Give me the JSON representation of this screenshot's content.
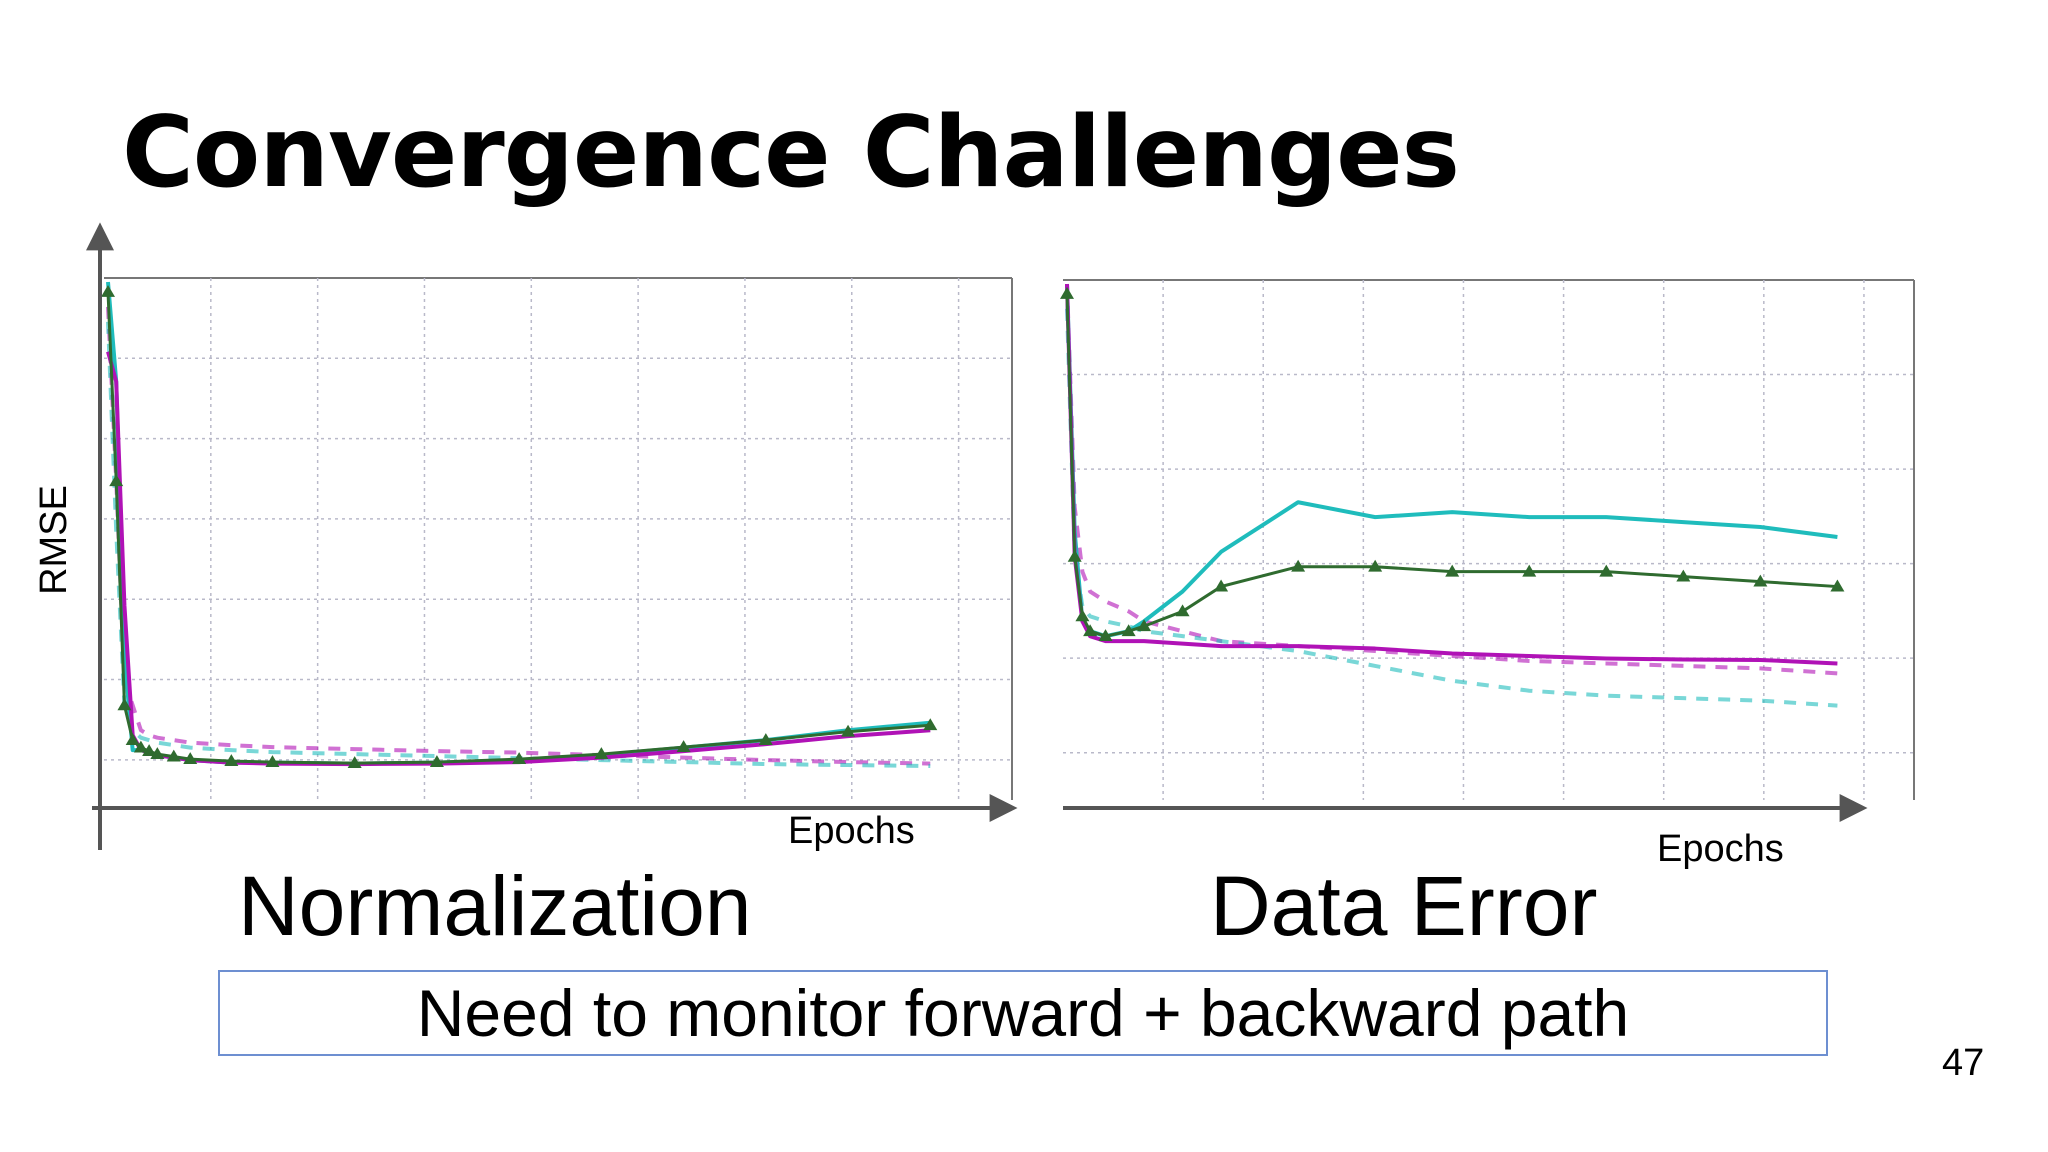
{
  "slide": {
    "title": "Convergence Challenges",
    "note": "Need to monitor forward + backward path",
    "page_number": "47"
  },
  "colors": {
    "cyan": "#1fbcbc",
    "magenta": "#b012b6",
    "green": "#2f6b2f",
    "note_border": "#6d8fd1",
    "grid": "#b9b9c9"
  },
  "chart_data": [
    {
      "type": "line",
      "title": "Normalization",
      "xlabel": "Epochs",
      "ylabel": "RMSE",
      "grid": true,
      "ylim": [
        0,
        1
      ],
      "x": [
        0,
        1,
        2,
        3,
        4,
        5,
        6,
        8,
        10,
        15,
        20,
        30,
        40,
        50,
        60,
        70,
        80,
        90,
        100
      ],
      "series": [
        {
          "color": "cyan",
          "style": "solid",
          "values": [
            1.0,
            0.8,
            0.25,
            0.06,
            0.06,
            0.055,
            0.05,
            0.045,
            0.04,
            0.035,
            0.035,
            0.033,
            0.035,
            0.04,
            0.05,
            0.065,
            0.08,
            0.1,
            0.115
          ]
        },
        {
          "color": "magenta",
          "style": "solid",
          "values": [
            0.86,
            0.8,
            0.35,
            0.09,
            0.06,
            0.055,
            0.05,
            0.045,
            0.04,
            0.035,
            0.033,
            0.032,
            0.033,
            0.036,
            0.045,
            0.058,
            0.072,
            0.088,
            0.1
          ]
        },
        {
          "color": "green",
          "style": "triangles",
          "values": [
            0.98,
            0.6,
            0.15,
            0.08,
            0.065,
            0.058,
            0.052,
            0.047,
            0.042,
            0.038,
            0.036,
            0.034,
            0.036,
            0.042,
            0.052,
            0.066,
            0.08,
            0.097,
            0.11
          ]
        },
        {
          "color": "magenta",
          "style": "dashed",
          "values": [
            0.95,
            0.6,
            0.2,
            0.15,
            0.1,
            0.09,
            0.085,
            0.08,
            0.075,
            0.07,
            0.066,
            0.062,
            0.058,
            0.055,
            0.05,
            0.045,
            0.04,
            0.036,
            0.033
          ]
        },
        {
          "color": "cyan",
          "style": "dashed",
          "values": [
            0.92,
            0.5,
            0.15,
            0.1,
            0.085,
            0.08,
            0.075,
            0.07,
            0.065,
            0.06,
            0.056,
            0.052,
            0.048,
            0.044,
            0.04,
            0.036,
            0.032,
            0.03,
            0.028
          ]
        }
      ]
    },
    {
      "type": "line",
      "title": "Data Error",
      "xlabel": "Epochs",
      "ylabel": "",
      "grid": true,
      "ylim": [
        0,
        1
      ],
      "x": [
        0,
        1,
        2,
        3,
        5,
        8,
        10,
        15,
        20,
        30,
        40,
        50,
        60,
        70,
        80,
        90,
        100
      ],
      "series": [
        {
          "color": "cyan",
          "style": "solid",
          "values": [
            1.0,
            0.5,
            0.32,
            0.3,
            0.29,
            0.3,
            0.32,
            0.38,
            0.46,
            0.56,
            0.53,
            0.54,
            0.53,
            0.53,
            0.52,
            0.51,
            0.49
          ]
        },
        {
          "color": "green",
          "style": "triangles",
          "values": [
            0.98,
            0.45,
            0.33,
            0.3,
            0.29,
            0.3,
            0.31,
            0.34,
            0.39,
            0.43,
            0.43,
            0.42,
            0.42,
            0.42,
            0.41,
            0.4,
            0.39
          ]
        },
        {
          "color": "magenta",
          "style": "solid",
          "values": [
            1.0,
            0.45,
            0.32,
            0.29,
            0.28,
            0.28,
            0.28,
            0.275,
            0.27,
            0.27,
            0.265,
            0.255,
            0.25,
            0.245,
            0.243,
            0.242,
            0.235
          ]
        },
        {
          "color": "magenta",
          "style": "dashed",
          "values": [
            1.0,
            0.55,
            0.42,
            0.38,
            0.36,
            0.34,
            0.32,
            0.3,
            0.28,
            0.27,
            0.26,
            0.25,
            0.24,
            0.235,
            0.23,
            0.225,
            0.215
          ]
        },
        {
          "color": "cyan",
          "style": "dashed",
          "values": [
            0.95,
            0.45,
            0.35,
            0.33,
            0.32,
            0.31,
            0.3,
            0.29,
            0.28,
            0.26,
            0.23,
            0.2,
            0.18,
            0.17,
            0.165,
            0.16,
            0.15
          ]
        }
      ]
    }
  ]
}
